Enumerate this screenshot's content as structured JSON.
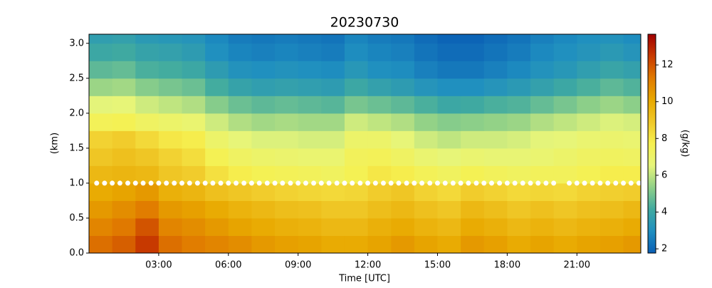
{
  "chart_data": {
    "type": "heatmap",
    "title": "20230730",
    "xlabel": "Time [UTC]",
    "ylabel": "(km)",
    "colorbar_label": "(g/kg)",
    "xlim": [
      0,
      23.75
    ],
    "ylim": [
      0,
      3.13
    ],
    "clim": [
      1.77,
      13.67
    ],
    "xticks": [
      {
        "value": 3,
        "label": "03:00"
      },
      {
        "value": 6,
        "label": "06:00"
      },
      {
        "value": 9,
        "label": "09:00"
      },
      {
        "value": 12,
        "label": "12:00"
      },
      {
        "value": 15,
        "label": "15:00"
      },
      {
        "value": 18,
        "label": "18:00"
      },
      {
        "value": 21,
        "label": "21:00"
      }
    ],
    "yticks": [
      {
        "value": 0,
        "label": "0.0"
      },
      0.5,
      {
        "value": 1,
        "label": "1.0"
      },
      1.5,
      {
        "value": 2,
        "label": "2.0"
      },
      2.5,
      {
        "value": 3,
        "label": "3.0"
      }
    ],
    "cticks": [
      2,
      4,
      6,
      8,
      10,
      12
    ],
    "colors": [
      "#0a5fb5",
      "#1f8fc0",
      "#40aaa0",
      "#8fd088",
      "#e6f57a",
      "#f6f050",
      "#f0c828",
      "#e8a800",
      "#e07a00",
      "#c83a00",
      "#a00000"
    ],
    "x": [
      0.5,
      1.5,
      2.5,
      3.5,
      4.5,
      5.5,
      6.5,
      7.5,
      8.5,
      9.5,
      10.5,
      11.5,
      12.5,
      13.5,
      14.5,
      15.5,
      16.5,
      17.5,
      18.5,
      19.5,
      20.5,
      21.5,
      22.5,
      23.5
    ],
    "y": [
      0.125,
      0.375,
      0.625,
      0.875,
      1.125,
      1.375,
      1.625,
      1.875,
      2.125,
      2.375,
      2.625,
      2.875,
      3.125
    ],
    "z": [
      [
        11.5,
        11.8,
        12.5,
        11.5,
        11.2,
        11,
        10.8,
        10.5,
        10.3,
        10.2,
        10,
        10,
        10.2,
        10.5,
        10.2,
        10,
        10.5,
        10.3,
        10,
        10.2,
        10,
        10.2,
        10.3,
        10.5
      ],
      [
        11,
        11.3,
        12,
        11,
        10.8,
        10.5,
        10.2,
        10,
        9.8,
        9.7,
        9.5,
        9.5,
        9.8,
        10,
        9.7,
        9.5,
        10,
        9.8,
        9.5,
        9.7,
        9.5,
        9.7,
        9.8,
        10
      ],
      [
        10.5,
        10.8,
        11.2,
        10.5,
        10.3,
        10,
        9.7,
        9.5,
        9.3,
        9.2,
        9,
        9,
        9.3,
        9.5,
        9.2,
        9,
        9.5,
        9.3,
        9,
        9.2,
        9,
        9.2,
        9.3,
        9.5
      ],
      [
        10,
        10.2,
        10.5,
        9.8,
        9.6,
        9.2,
        9,
        8.8,
        8.6,
        8.5,
        8.4,
        8.5,
        8.8,
        9,
        8.6,
        8.4,
        8.8,
        8.6,
        8.4,
        8.5,
        8.4,
        8.6,
        8.7,
        8.8
      ],
      [
        9.5,
        9.6,
        9.5,
        9,
        8.8,
        8.2,
        7.8,
        7.6,
        7.5,
        7.4,
        7.3,
        7.6,
        8,
        7.8,
        7.5,
        7.3,
        7.6,
        7.4,
        7.3,
        7.4,
        7.4,
        7.6,
        7.8,
        7.8
      ],
      [
        9,
        9.2,
        9,
        8.6,
        8.3,
        7.6,
        7.2,
        7,
        6.9,
        6.8,
        6.8,
        7.4,
        7.5,
        7.2,
        6.8,
        6.6,
        6.8,
        6.7,
        6.7,
        6.8,
        7,
        7.2,
        7.3,
        7.2
      ],
      [
        8.6,
        8.8,
        8.4,
        8,
        7.8,
        7,
        6.6,
        6.4,
        6.4,
        6.3,
        6.3,
        7,
        7,
        6.6,
        6.2,
        6,
        6.2,
        6.2,
        6.3,
        6.5,
        6.6,
        6.8,
        6.9,
        6.8
      ],
      [
        7.5,
        7.6,
        7.2,
        7,
        6.8,
        6.2,
        5.8,
        5.6,
        5.7,
        5.6,
        5.6,
        6.2,
        6,
        5.8,
        5.4,
        5.2,
        5.3,
        5.4,
        5.5,
        5.8,
        6,
        6.2,
        6.4,
        6.3
      ],
      [
        6.5,
        6.6,
        6.2,
        6,
        5.8,
        5.2,
        4.8,
        4.6,
        4.7,
        4.6,
        4.5,
        5,
        4.8,
        4.6,
        4.3,
        4,
        4.1,
        4.3,
        4.4,
        4.7,
        5,
        5.3,
        5.5,
        5.3
      ],
      [
        5.5,
        5.6,
        5.2,
        5,
        4.8,
        4.2,
        3.8,
        3.6,
        3.7,
        3.6,
        3.5,
        4,
        3.7,
        3.5,
        3.2,
        3,
        3,
        3.2,
        3.4,
        3.7,
        4,
        4.3,
        4.6,
        4.4
      ],
      [
        4.6,
        4.7,
        4.3,
        4.2,
        4,
        3.5,
        3.1,
        3,
        3.1,
        3,
        2.9,
        3.3,
        3,
        2.9,
        2.6,
        2.4,
        2.4,
        2.6,
        2.8,
        3.1,
        3.3,
        3.6,
        3.9,
        3.7
      ],
      [
        4,
        4.1,
        3.8,
        3.7,
        3.5,
        3,
        2.7,
        2.6,
        2.7,
        2.6,
        2.5,
        2.9,
        2.7,
        2.6,
        2.3,
        2.1,
        2.1,
        2.3,
        2.5,
        2.8,
        3,
        3.2,
        3.4,
        3.2
      ],
      [
        3.6,
        3.7,
        3.4,
        3.3,
        3.2,
        2.8,
        2.5,
        2.4,
        2.5,
        2.4,
        2.3,
        2.7,
        2.5,
        2.4,
        2.1,
        1.9,
        1.9,
        2.1,
        2.3,
        2.6,
        2.8,
        3,
        3.1,
        2.9
      ]
    ],
    "points": {
      "color": "#ffffff",
      "x": [
        0.33,
        0.67,
        1,
        1.33,
        1.67,
        2,
        2.33,
        2.67,
        3,
        3.33,
        3.67,
        4,
        4.33,
        4.67,
        5,
        5.33,
        5.67,
        6,
        6.33,
        6.67,
        7,
        7.33,
        7.67,
        8,
        8.33,
        8.67,
        9,
        9.33,
        9.67,
        10,
        10.33,
        10.67,
        11,
        11.33,
        11.67,
        12,
        12.33,
        12.67,
        13,
        13.33,
        13.67,
        14,
        14.33,
        14.67,
        15,
        15.33,
        15.67,
        16,
        16.33,
        16.67,
        17,
        17.33,
        17.67,
        18,
        18.33,
        18.67,
        19,
        19.33,
        19.67,
        20,
        20.67,
        21,
        21.33,
        21.67,
        22,
        22.33,
        22.67,
        23,
        23.33,
        23.67
      ],
      "values": [
        1,
        1,
        1,
        1,
        1,
        1,
        1,
        1,
        1,
        1,
        1,
        1,
        1,
        1,
        1,
        1,
        1,
        1,
        1,
        1,
        1,
        1,
        1,
        1,
        1,
        1,
        1,
        1,
        1,
        1,
        1,
        1,
        1,
        1,
        1,
        1,
        1,
        1,
        1,
        1,
        1,
        1,
        1,
        1,
        1,
        1,
        1,
        1,
        1,
        1,
        1,
        1,
        1,
        1,
        1,
        1,
        1,
        1,
        1,
        1,
        1,
        1,
        1,
        1,
        1,
        1,
        1,
        1,
        1,
        1
      ]
    }
  }
}
